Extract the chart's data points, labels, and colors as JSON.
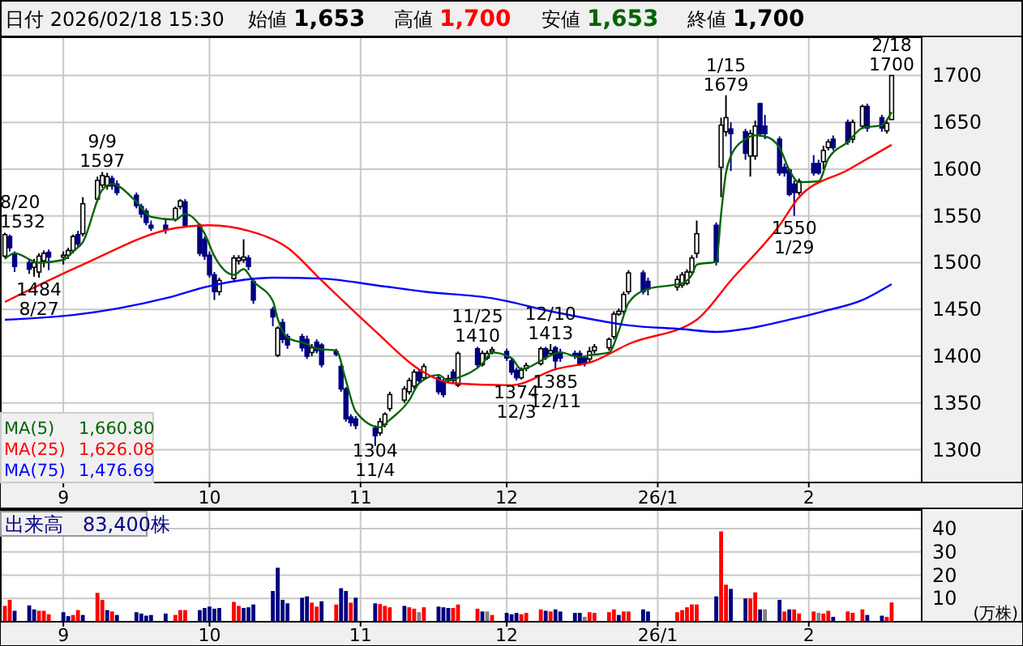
{
  "chart_data": [
    {
      "type": "candlestick",
      "title": "日付 2026/02/18 15:30",
      "annotations": [
        "始値 1,653",
        "高値 1,700",
        "安値 1,653",
        "終値 1,700",
        {
          "text": "8/20\n1532",
          "x": "2025-08-20",
          "y": 1532
        },
        {
          "text": "1484\n8/27",
          "x": "2025-08-27",
          "y": 1484
        },
        {
          "text": "9/9\n1597",
          "x": "2025-09-09",
          "y": 1597
        },
        {
          "text": "1304\n11/4",
          "x": "2025-11-04",
          "y": 1304
        },
        {
          "text": "11/25\n1410",
          "x": "2025-11-25",
          "y": 1410
        },
        {
          "text": "1374\n12/3",
          "x": "2025-12-03",
          "y": 1374
        },
        {
          "text": "12/10\n1413",
          "x": "2025-12-10",
          "y": 1413
        },
        {
          "text": "1385\n12/11",
          "x": "2025-12-11",
          "y": 1385
        },
        {
          "text": "1/15\n1679",
          "x": "2026-01-15",
          "y": 1679
        },
        {
          "text": "1550\n1/29",
          "x": "2026-01-29",
          "y": 1550
        },
        {
          "text": "2/18\n1700",
          "x": "2026-02-18",
          "y": 1700
        }
      ],
      "x": [
        "2025-08-20",
        "2025-08-21",
        "2025-08-22",
        "2025-08-25",
        "2025-08-26",
        "2025-08-27",
        "2025-08-28",
        "2025-08-29",
        "2025-09-01",
        "2025-09-02",
        "2025-09-03",
        "2025-09-04",
        "2025-09-05",
        "2025-09-08",
        "2025-09-09",
        "2025-09-10",
        "2025-09-11",
        "2025-09-12",
        "2025-09-16",
        "2025-09-17",
        "2025-09-18",
        "2025-09-19",
        "2025-09-22",
        "2025-09-24",
        "2025-09-25",
        "2025-09-26",
        "2025-09-29",
        "2025-09-30",
        "2025-10-01",
        "2025-10-02",
        "2025-10-03",
        "2025-10-06",
        "2025-10-07",
        "2025-10-08",
        "2025-10-09",
        "2025-10-10",
        "2025-10-14",
        "2025-10-15",
        "2025-10-16",
        "2025-10-17",
        "2025-10-20",
        "2025-10-21",
        "2025-10-22",
        "2025-10-23",
        "2025-10-24",
        "2025-10-27",
        "2025-10-28",
        "2025-10-29",
        "2025-10-30",
        "2025-10-31",
        "2025-11-04",
        "2025-11-05",
        "2025-11-06",
        "2025-11-07",
        "2025-11-10",
        "2025-11-11",
        "2025-11-12",
        "2025-11-13",
        "2025-11-14",
        "2025-11-17",
        "2025-11-18",
        "2025-11-19",
        "2025-11-20",
        "2025-11-21",
        "2025-11-25",
        "2025-11-26",
        "2025-11-27",
        "2025-11-28",
        "2025-12-01",
        "2025-12-02",
        "2025-12-03",
        "2025-12-04",
        "2025-12-05",
        "2025-12-08",
        "2025-12-09",
        "2025-12-10",
        "2025-12-11",
        "2025-12-12",
        "2025-12-15",
        "2025-12-16",
        "2025-12-17",
        "2025-12-18",
        "2025-12-19",
        "2025-12-22",
        "2025-12-23",
        "2025-12-24",
        "2025-12-25",
        "2025-12-26",
        "2025-12-29",
        "2025-12-30",
        "2026-01-05",
        "2026-01-06",
        "2026-01-07",
        "2026-01-08",
        "2026-01-09",
        "2026-01-13",
        "2026-01-14",
        "2026-01-15",
        "2026-01-16",
        "2026-01-19",
        "2026-01-20",
        "2026-01-21",
        "2026-01-22",
        "2026-01-23",
        "2026-01-26",
        "2026-01-27",
        "2026-01-28",
        "2026-01-29",
        "2026-01-30",
        "2026-02-02",
        "2026-02-03",
        "2026-02-04",
        "2026-02-05",
        "2026-02-06",
        "2026-02-09",
        "2026-02-10",
        "2026-02-12",
        "2026-02-13",
        "2026-02-16",
        "2026-02-17",
        "2026-02-18"
      ],
      "ohlc": [
        [
          1507,
          1532,
          1505,
          1530
        ],
        [
          1528,
          1530,
          1512,
          1516
        ],
        [
          1510,
          1512,
          1490,
          1496
        ],
        [
          1500,
          1503,
          1488,
          1493
        ],
        [
          1495,
          1504,
          1485,
          1500
        ],
        [
          1490,
          1510,
          1484,
          1507
        ],
        [
          1502,
          1513,
          1495,
          1510
        ],
        [
          1511,
          1514,
          1492,
          1506
        ],
        [
          1506,
          1512,
          1498,
          1508
        ],
        [
          1508,
          1516,
          1504,
          1513
        ],
        [
          1513,
          1530,
          1510,
          1528
        ],
        [
          1530,
          1534,
          1516,
          1520
        ],
        [
          1531,
          1570,
          1528,
          1563
        ],
        [
          1568,
          1592,
          1565,
          1588
        ],
        [
          1583,
          1597,
          1580,
          1593
        ],
        [
          1582,
          1596,
          1578,
          1592
        ],
        [
          1590,
          1593,
          1578,
          1582
        ],
        [
          1584,
          1588,
          1572,
          1575
        ],
        [
          1572,
          1575,
          1558,
          1561
        ],
        [
          1560,
          1563,
          1548,
          1552
        ],
        [
          1555,
          1558,
          1540,
          1543
        ],
        [
          1540,
          1545,
          1534,
          1537
        ],
        [
          1540,
          1546,
          1531,
          1535
        ],
        [
          1546,
          1560,
          1544,
          1558
        ],
        [
          1560,
          1568,
          1557,
          1566
        ],
        [
          1565,
          1568,
          1538,
          1540
        ],
        [
          1540,
          1542,
          1507,
          1510
        ],
        [
          1525,
          1528,
          1503,
          1507
        ],
        [
          1508,
          1512,
          1484,
          1487
        ],
        [
          1487,
          1490,
          1460,
          1469
        ],
        [
          1469,
          1484,
          1465,
          1481
        ],
        [
          1483,
          1508,
          1480,
          1505
        ],
        [
          1502,
          1508,
          1498,
          1505
        ],
        [
          1503,
          1525,
          1500,
          1506
        ],
        [
          1505,
          1508,
          1492,
          1496
        ],
        [
          1480,
          1484,
          1456,
          1460
        ],
        [
          1450,
          1453,
          1432,
          1442
        ],
        [
          1401,
          1432,
          1399,
          1430
        ],
        [
          1436,
          1440,
          1414,
          1418
        ],
        [
          1421,
          1424,
          1408,
          1412
        ],
        [
          1421,
          1424,
          1405,
          1409
        ],
        [
          1418,
          1422,
          1397,
          1400
        ],
        [
          1404,
          1413,
          1400,
          1409
        ],
        [
          1415,
          1418,
          1403,
          1406
        ],
        [
          1412,
          1414,
          1388,
          1391
        ],
        [
          1405,
          1408,
          1400,
          1402
        ],
        [
          1389,
          1392,
          1362,
          1365
        ],
        [
          1365,
          1367,
          1330,
          1333
        ],
        [
          1335,
          1338,
          1325,
          1329
        ],
        [
          1333,
          1336,
          1322,
          1326
        ],
        [
          1323,
          1326,
          1304,
          1315
        ],
        [
          1318,
          1334,
          1315,
          1330
        ],
        [
          1327,
          1340,
          1324,
          1338
        ],
        [
          1344,
          1362,
          1341,
          1359
        ],
        [
          1353,
          1368,
          1350,
          1365
        ],
        [
          1362,
          1377,
          1359,
          1374
        ],
        [
          1368,
          1386,
          1365,
          1383
        ],
        [
          1383,
          1386,
          1371,
          1374
        ],
        [
          1377,
          1392,
          1374,
          1389
        ],
        [
          1377,
          1380,
          1359,
          1362
        ],
        [
          1373,
          1376,
          1356,
          1359
        ],
        [
          1375,
          1380,
          1372,
          1376
        ],
        [
          1383,
          1386,
          1371,
          1374
        ],
        [
          1369,
          1405,
          1367,
          1403
        ],
        [
          1408,
          1410,
          1388,
          1391
        ],
        [
          1391,
          1406,
          1389,
          1403
        ],
        [
          1398,
          1406,
          1396,
          1403
        ],
        [
          1405,
          1410,
          1402,
          1407
        ],
        [
          1405,
          1408,
          1395,
          1398
        ],
        [
          1395,
          1398,
          1380,
          1383
        ],
        [
          1385,
          1388,
          1374,
          1377
        ],
        [
          1377,
          1388,
          1375,
          1385
        ],
        [
          1387,
          1393,
          1384,
          1390
        ],
        [
          1392,
          1410,
          1390,
          1408
        ],
        [
          1408,
          1410,
          1396,
          1399
        ],
        [
          1403,
          1413,
          1400,
          1406
        ],
        [
          1409,
          1411,
          1385,
          1395
        ],
        [
          1404,
          1408,
          1394,
          1398
        ],
        [
          1403,
          1406,
          1397,
          1401
        ],
        [
          1403,
          1406,
          1390,
          1392
        ],
        [
          1398,
          1400,
          1389,
          1392
        ],
        [
          1397,
          1410,
          1394,
          1405
        ],
        [
          1406,
          1413,
          1403,
          1410
        ],
        [
          1409,
          1420,
          1406,
          1418
        ],
        [
          1421,
          1448,
          1418,
          1445
        ],
        [
          1445,
          1451,
          1443,
          1448
        ],
        [
          1448,
          1469,
          1445,
          1466
        ],
        [
          1469,
          1492,
          1466,
          1489
        ],
        [
          1489,
          1492,
          1466,
          1469
        ],
        [
          1480,
          1484,
          1465,
          1472
        ],
        [
          1474,
          1486,
          1470,
          1482
        ],
        [
          1476,
          1490,
          1473,
          1487
        ],
        [
          1478,
          1493,
          1476,
          1490
        ],
        [
          1490,
          1508,
          1488,
          1505
        ],
        [
          1510,
          1545,
          1505,
          1531
        ],
        [
          1540,
          1543,
          1497,
          1501
        ],
        [
          1602,
          1655,
          1570,
          1647
        ],
        [
          1640,
          1679,
          1635,
          1655
        ],
        [
          1643,
          1650,
          1598,
          1638
        ],
        [
          1640,
          1643,
          1610,
          1617
        ],
        [
          1614,
          1642,
          1592,
          1638
        ],
        [
          1614,
          1652,
          1610,
          1646
        ],
        [
          1670,
          1671,
          1635,
          1638
        ],
        [
          1646,
          1658,
          1632,
          1638
        ],
        [
          1632,
          1635,
          1593,
          1596
        ],
        [
          1602,
          1606,
          1592,
          1596
        ],
        [
          1599,
          1601,
          1571,
          1573
        ],
        [
          1584,
          1588,
          1550,
          1575
        ],
        [
          1575,
          1590,
          1572,
          1587
        ],
        [
          1606,
          1615,
          1593,
          1596
        ],
        [
          1606,
          1610,
          1594,
          1596
        ],
        [
          1608,
          1625,
          1600,
          1620
        ],
        [
          1623,
          1632,
          1620,
          1629
        ],
        [
          1632,
          1636,
          1620,
          1623
        ],
        [
          1650,
          1653,
          1626,
          1629
        ],
        [
          1632,
          1653,
          1628,
          1650
        ],
        [
          1646,
          1669,
          1643,
          1667
        ],
        [
          1667,
          1670,
          1640,
          1644
        ],
        [
          1655,
          1658,
          1640,
          1644
        ],
        [
          1641,
          1652,
          1638,
          1649
        ],
        [
          1653,
          1700,
          1653,
          1700
        ]
      ],
      "series": [
        {
          "type": "line",
          "name": "MA(5) 1,660.80",
          "color": "#006400",
          "x": [
            "2025-08-20",
            "2025-08-22",
            "2025-08-27",
            "2025-09-01",
            "2025-09-03",
            "2025-09-05",
            "2025-09-09",
            "2025-09-11",
            "2025-09-16",
            "2025-09-19",
            "2025-09-24",
            "2025-09-26",
            "2025-09-30",
            "2025-10-02",
            "2025-10-06",
            "2025-10-08",
            "2025-10-10",
            "2025-10-14",
            "2025-10-15",
            "2025-10-17",
            "2025-10-21",
            "2025-10-23",
            "2025-10-27",
            "2025-10-29",
            "2025-10-31",
            "2025-11-05",
            "2025-11-07",
            "2025-11-11",
            "2025-11-13",
            "2025-11-17",
            "2025-11-19",
            "2025-11-21",
            "2025-11-26",
            "2025-11-28",
            "2025-12-02",
            "2025-12-04",
            "2025-12-08",
            "2025-12-10",
            "2025-12-12",
            "2025-12-16",
            "2025-12-18",
            "2025-12-22",
            "2025-12-24",
            "2025-12-26",
            "2025-12-30",
            "2026-01-06",
            "2026-01-08",
            "2026-01-09",
            "2026-01-13",
            "2026-01-14",
            "2026-01-15",
            "2026-01-16",
            "2026-01-19",
            "2026-01-21",
            "2026-01-23",
            "2026-01-26",
            "2026-01-28",
            "2026-01-30",
            "2026-02-03",
            "2026-02-05",
            "2026-02-09",
            "2026-02-12",
            "2026-02-16",
            "2026-02-18"
          ],
          "values": [
            1504,
            1510,
            1500,
            1503,
            1512,
            1522,
            1578,
            1584,
            1565,
            1549,
            1546,
            1552,
            1531,
            1507,
            1487,
            1493,
            1480,
            1459,
            1440,
            1420,
            1413,
            1408,
            1406,
            1374,
            1341,
            1324,
            1332,
            1353,
            1371,
            1380,
            1374,
            1377,
            1392,
            1404,
            1398,
            1386,
            1395,
            1401,
            1404,
            1399,
            1401,
            1404,
            1427,
            1457,
            1472,
            1478,
            1487,
            1498,
            1501,
            1552,
            1596,
            1614,
            1632,
            1636,
            1635,
            1623,
            1599,
            1586,
            1587,
            1611,
            1629,
            1644,
            1647,
            1661
          ]
        },
        {
          "type": "line",
          "name": "MA(25) 1,626.08",
          "color": "#ff0000",
          "x": [
            "2025-08-20",
            "2025-09-05",
            "2025-09-24",
            "2025-10-01",
            "2025-10-09",
            "2025-10-17",
            "2025-10-24",
            "2025-11-04",
            "2025-11-13",
            "2025-11-20",
            "2025-12-02",
            "2025-12-11",
            "2025-12-19",
            "2025-12-26",
            "2026-01-09",
            "2026-01-16",
            "2026-01-26",
            "2026-01-30",
            "2026-02-09",
            "2026-02-18"
          ],
          "values": [
            1458,
            1498,
            1537,
            1540,
            1534,
            1516,
            1481,
            1427,
            1386,
            1371,
            1369,
            1386,
            1395,
            1413,
            1439,
            1481,
            1540,
            1570,
            1599,
            1626
          ]
        },
        {
          "type": "line",
          "name": "MA(75) 1,476.69",
          "color": "#0000ff",
          "x": [
            "2025-08-20",
            "2025-09-03",
            "2025-09-22",
            "2025-10-01",
            "2025-10-14",
            "2025-10-24",
            "2025-11-04",
            "2025-11-14",
            "2025-11-28",
            "2025-12-10",
            "2025-12-19",
            "2025-12-26",
            "2026-01-06",
            "2026-01-13",
            "2026-01-20",
            "2026-01-28",
            "2026-02-04",
            "2026-02-12",
            "2026-02-18"
          ],
          "values": [
            1439,
            1444,
            1462,
            1475,
            1484,
            1483,
            1476,
            1469,
            1462,
            1448,
            1439,
            1433,
            1429,
            1426,
            1430,
            1439,
            1448,
            1460,
            1477
          ]
        }
      ],
      "xlim": [
        "2025-08-19",
        "2026-02-24"
      ],
      "xticks": [
        {
          "value": "2025-09-01",
          "label": "9"
        },
        {
          "value": "2025-10-01",
          "label": "10"
        },
        {
          "value": "2025-11-01",
          "label": "11"
        },
        {
          "value": "2025-12-01",
          "label": "12"
        },
        {
          "value": "2026-01-01",
          "label": "26/1"
        },
        {
          "value": "2026-02-01",
          "label": "2"
        }
      ],
      "ylim": [
        1265,
        1741
      ],
      "yticks": [
        1300,
        1350,
        1400,
        1450,
        1500,
        1550,
        1600,
        1650,
        1700
      ],
      "grid": true,
      "legend": "bottom left"
    },
    {
      "type": "bar",
      "title": "出来高　83,400株",
      "ylabel": "(万株)",
      "x": [
        "2025-08-20",
        "2025-08-21",
        "2025-08-22",
        "2025-08-25",
        "2025-08-26",
        "2025-08-27",
        "2025-08-28",
        "2025-08-29",
        "2025-09-01",
        "2025-09-02",
        "2025-09-03",
        "2025-09-04",
        "2025-09-05",
        "2025-09-08",
        "2025-09-09",
        "2025-09-10",
        "2025-09-11",
        "2025-09-12",
        "2025-09-16",
        "2025-09-17",
        "2025-09-18",
        "2025-09-19",
        "2025-09-22",
        "2025-09-24",
        "2025-09-25",
        "2025-09-26",
        "2025-09-29",
        "2025-09-30",
        "2025-10-01",
        "2025-10-02",
        "2025-10-03",
        "2025-10-06",
        "2025-10-07",
        "2025-10-08",
        "2025-10-09",
        "2025-10-10",
        "2025-10-14",
        "2025-10-15",
        "2025-10-16",
        "2025-10-17",
        "2025-10-20",
        "2025-10-21",
        "2025-10-22",
        "2025-10-23",
        "2025-10-24",
        "2025-10-27",
        "2025-10-28",
        "2025-10-29",
        "2025-10-30",
        "2025-10-31",
        "2025-11-04",
        "2025-11-05",
        "2025-11-06",
        "2025-11-07",
        "2025-11-10",
        "2025-11-11",
        "2025-11-12",
        "2025-11-13",
        "2025-11-14",
        "2025-11-17",
        "2025-11-18",
        "2025-11-19",
        "2025-11-20",
        "2025-11-21",
        "2025-11-25",
        "2025-11-26",
        "2025-11-27",
        "2025-11-28",
        "2025-12-01",
        "2025-12-02",
        "2025-12-03",
        "2025-12-04",
        "2025-12-05",
        "2025-12-08",
        "2025-12-09",
        "2025-12-10",
        "2025-12-11",
        "2025-12-12",
        "2025-12-15",
        "2025-12-16",
        "2025-12-17",
        "2025-12-18",
        "2025-12-19",
        "2025-12-22",
        "2025-12-23",
        "2025-12-24",
        "2025-12-25",
        "2025-12-26",
        "2025-12-29",
        "2025-12-30",
        "2026-01-05",
        "2026-01-06",
        "2026-01-07",
        "2026-01-08",
        "2026-01-09",
        "2026-01-13",
        "2026-01-14",
        "2026-01-15",
        "2026-01-16",
        "2026-01-19",
        "2026-01-20",
        "2026-01-21",
        "2026-01-22",
        "2026-01-23",
        "2026-01-26",
        "2026-01-27",
        "2026-01-28",
        "2026-01-29",
        "2026-01-30",
        "2026-02-02",
        "2026-02-03",
        "2026-02-04",
        "2026-02-05",
        "2026-02-06",
        "2026-02-09",
        "2026-02-10",
        "2026-02-12",
        "2026-02-13",
        "2026-02-16",
        "2026-02-17",
        "2026-02-18"
      ],
      "values": [
        6.8,
        9.4,
        4.7,
        7,
        5.3,
        4.7,
        4.7,
        3.2,
        4.1,
        2.4,
        2.9,
        5,
        2.9,
        12.4,
        9.4,
        5,
        4.4,
        2.9,
        4.1,
        3.5,
        2.6,
        2.9,
        3.5,
        2.9,
        5,
        5,
        5,
        5.9,
        6.5,
        5.6,
        5.9,
        8.5,
        6.8,
        5.9,
        6.2,
        7.4,
        13.2,
        23.2,
        9.4,
        7.9,
        10.3,
        10.9,
        8.2,
        6.5,
        8.8,
        7.4,
        14.4,
        13.2,
        8.2,
        10.3,
        7.9,
        7.6,
        6.8,
        6.2,
        6.8,
        6.2,
        5.6,
        4.1,
        6.2,
        6.5,
        6.2,
        5.9,
        5.9,
        7.4,
        5.6,
        4.4,
        4.4,
        2.9,
        3.8,
        3.2,
        3.8,
        3.2,
        3.8,
        5.3,
        4.7,
        4.4,
        5.3,
        4.4,
        3.8,
        3.8,
        2.1,
        4.1,
        3.8,
        4.1,
        5.3,
        2.9,
        4.4,
        4.4,
        5.3,
        4.4,
        4.1,
        5,
        6.2,
        7.4,
        7.4,
        10.9,
        38.8,
        15.9,
        14.1,
        10,
        10,
        12.6,
        5.3,
        5.3,
        9.4,
        4.4,
        5.3,
        5.3,
        3.5,
        4.4,
        3.8,
        3.5,
        4.7,
        2.1,
        4.4,
        3.8,
        5.3,
        2.9,
        2.6,
        2.1,
        8.3
      ],
      "colors": [
        "#ff0000",
        "#ff0000",
        "#000080",
        "#000080",
        "#000080",
        "#ff0000",
        "#ff0000",
        "#ff0000",
        "#000080",
        "#000080",
        "#ff0000",
        "#ff0000",
        "#000080",
        "#ff0000",
        "#ff0000",
        "#000080",
        "#ff0000",
        "#000080",
        "#000080",
        "#000080",
        "#000080",
        "#000080",
        "#000080",
        "#ff0000",
        "#ff0000",
        "#ff0000",
        "#000080",
        "#000080",
        "#000080",
        "#000080",
        "#000080",
        "#ff0000",
        "#ff0000",
        "#000080",
        "#000080",
        "#000080",
        "#000080",
        "#000080",
        "#000080",
        "#000080",
        "#000080",
        "#000080",
        "#ff0000",
        "#ff0000",
        "#000080",
        "#ff0000",
        "#000080",
        "#000080",
        "#ff0000",
        "#000080",
        "#000080",
        "#ff0000",
        "#ff0000",
        "#ff0000",
        "#000080",
        "#ff0000",
        "#ff0000",
        "#808080",
        "#ff0000",
        "#000080",
        "#000080",
        "#000080",
        "#ff0000",
        "#ff0000",
        "#ff0000",
        "#000080",
        "#808080",
        "#ff0000",
        "#000080",
        "#000080",
        "#000080",
        "#ff0000",
        "#ff0000",
        "#ff0000",
        "#000080",
        "#ff0000",
        "#000080",
        "#000080",
        "#000080",
        "#000080",
        "#808080",
        "#ff0000",
        "#ff0000",
        "#ff0000",
        "#ff0000",
        "#000080",
        "#ff0000",
        "#ff0000",
        "#000080",
        "#000080",
        "#ff0000",
        "#ff0000",
        "#ff0000",
        "#ff0000",
        "#ff0000",
        "#000080",
        "#ff0000",
        "#ff0000",
        "#000080",
        "#000080",
        "#ff0000",
        "#ff0000",
        "#000080",
        "#808080",
        "#000080",
        "#ff0000",
        "#000080",
        "#ff0000",
        "#ff0000",
        "#ff0000",
        "#808080",
        "#ff0000",
        "#ff0000",
        "#000080",
        "#ff0000",
        "#ff0000",
        "#ff0000",
        "#000080",
        "#000080",
        "#ff0000",
        "#ff0000"
      ],
      "xlim": [
        "2025-08-19",
        "2026-02-24"
      ],
      "xticks": [
        {
          "value": "2025-09-01",
          "label": "9"
        },
        {
          "value": "2025-10-01",
          "label": "10"
        },
        {
          "value": "2025-11-01",
          "label": "11"
        },
        {
          "value": "2025-12-01",
          "label": "12"
        },
        {
          "value": "2026-01-01",
          "label": "26/1"
        },
        {
          "value": "2026-02-01",
          "label": "2"
        }
      ],
      "ylim": [
        0,
        48
      ],
      "yticks": [
        10,
        20,
        30,
        40
      ],
      "grid": true
    }
  ]
}
